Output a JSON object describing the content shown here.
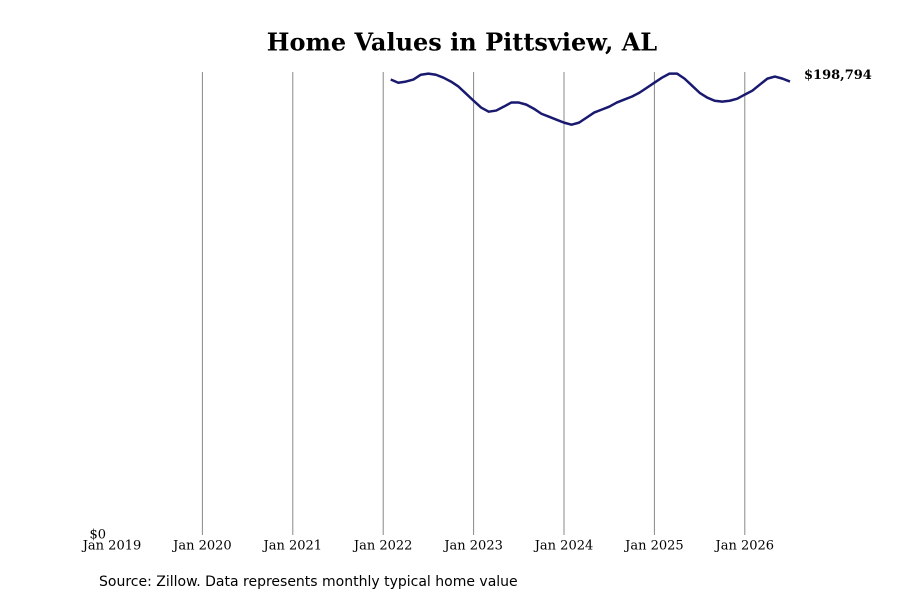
{
  "chart_data": {
    "type": "line",
    "title": "Home Values in Pittsview, AL",
    "source": "Source: Zillow. Data represents monthly typical home value",
    "color": "#191970",
    "grid": true,
    "x": [
      "2022-02",
      "2022-03",
      "2022-04",
      "2022-05",
      "2022-06",
      "2022-07",
      "2022-08",
      "2022-09",
      "2022-10",
      "2022-11",
      "2022-12",
      "2023-01",
      "2023-02",
      "2023-03",
      "2023-04",
      "2023-05",
      "2023-06",
      "2023-07",
      "2023-08",
      "2023-09",
      "2023-10",
      "2023-11",
      "2023-12",
      "2024-01",
      "2024-02",
      "2024-03",
      "2024-04",
      "2024-05",
      "2024-06",
      "2024-07",
      "2024-08",
      "2024-09",
      "2024-10",
      "2024-11",
      "2024-12",
      "2025-01",
      "2025-02",
      "2025-03",
      "2025-04",
      "2025-05",
      "2025-06",
      "2025-07",
      "2025-08",
      "2025-09",
      "2025-10",
      "2025-11",
      "2025-12",
      "2026-01",
      "2026-02",
      "2026-03",
      "2026-04",
      "2026-05",
      "2026-06",
      "2026-07"
    ],
    "values": [
      199700,
      198300,
      198800,
      199700,
      201800,
      202300,
      201800,
      200500,
      198800,
      196600,
      193500,
      190400,
      187400,
      185600,
      186100,
      187800,
      189600,
      189600,
      188700,
      186900,
      184700,
      183400,
      182100,
      180800,
      179900,
      180800,
      183000,
      185200,
      186500,
      187800,
      189600,
      190900,
      192200,
      193900,
      196100,
      198300,
      200500,
      202300,
      202300,
      200100,
      197000,
      193900,
      191800,
      190400,
      190000,
      190400,
      191300,
      193100,
      194800,
      197500,
      200100,
      201000,
      200100,
      198794
    ],
    "value_labels": [
      null,
      null,
      null,
      null,
      null,
      null,
      null,
      null,
      null,
      null,
      null,
      null,
      null,
      null,
      null,
      null,
      null,
      null,
      null,
      null,
      null,
      null,
      null,
      null,
      null,
      null,
      null,
      null,
      null,
      null,
      null,
      null,
      null,
      null,
      null,
      null,
      null,
      null,
      null,
      null,
      null,
      null,
      null,
      null,
      null,
      null,
      null,
      null,
      null,
      null,
      null,
      null,
      null,
      "$198,794"
    ],
    "xlim": [
      "2019-01",
      "2026-07"
    ],
    "xticks": [
      {
        "value": "2019-01",
        "label": "Jan 2019"
      },
      {
        "value": "2020-01",
        "label": "Jan 2020"
      },
      {
        "value": "2021-01",
        "label": "Jan 2021"
      },
      {
        "value": "2022-01",
        "label": "Jan 2022"
      },
      {
        "value": "2023-01",
        "label": "Jan 2023"
      },
      {
        "value": "2024-01",
        "label": "Jan 2024"
      },
      {
        "value": "2025-01",
        "label": "Jan 2025"
      },
      {
        "value": "2026-01",
        "label": "Jan 2026"
      }
    ],
    "ylim": [
      0,
      203000
    ],
    "yticks": [
      {
        "value": 0,
        "label": "$0"
      }
    ]
  }
}
